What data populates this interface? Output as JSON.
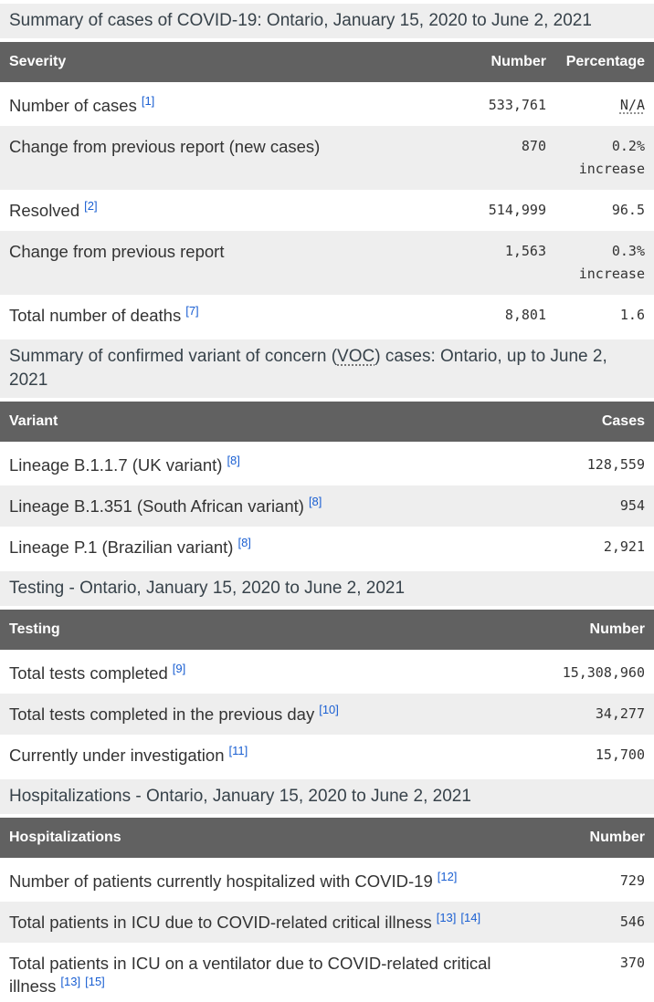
{
  "colors": {
    "table_header_bg": "#616161",
    "table_header_text": "#ffffff",
    "caption_bg": "#eeeeee",
    "caption_text": "#37424a",
    "row_stripe_bg": "#eeeeee",
    "body_text": "#333333",
    "footnote_link": "#1a5fd2"
  },
  "tables": [
    {
      "id": "severity",
      "caption": {
        "pre": "Summary of cases of COVID-19: Ontario, January 15, 2020 to June 2, 2021",
        "abbr": "",
        "post": ""
      },
      "columns": [
        {
          "label": "Severity",
          "align": "left"
        },
        {
          "label": "Number",
          "align": "right"
        },
        {
          "label": "Percentage",
          "align": "right"
        }
      ],
      "rows": [
        {
          "label": "Number of cases",
          "footnotes": [
            "[1]"
          ],
          "number": "533,761",
          "pct": "N/A",
          "pct_abbr": true,
          "pct_note": ""
        },
        {
          "label": "Change from previous report (new cases)",
          "footnotes": [],
          "number": "870",
          "pct": "0.2%",
          "pct_abbr": false,
          "pct_note": "increase"
        },
        {
          "label": "Resolved",
          "footnotes": [
            "[2]"
          ],
          "number": "514,999",
          "pct": "96.5",
          "pct_abbr": false,
          "pct_note": ""
        },
        {
          "label": "Change from previous report",
          "footnotes": [],
          "number": "1,563",
          "pct": "0.3%",
          "pct_abbr": false,
          "pct_note": "increase"
        },
        {
          "label": "Total number of deaths",
          "footnotes": [
            "[7]"
          ],
          "number": "8,801",
          "pct": "1.6",
          "pct_abbr": false,
          "pct_note": ""
        }
      ]
    },
    {
      "id": "variants",
      "caption": {
        "pre": "Summary of confirmed variant of concern (",
        "abbr": "VOC",
        "post": ") cases: Ontario, up to June 2, 2021"
      },
      "columns": [
        {
          "label": "Variant",
          "align": "left"
        },
        {
          "label": "Cases",
          "align": "right"
        }
      ],
      "rows": [
        {
          "label": "Lineage B.1.1.7 (UK variant)",
          "footnotes": [
            "[8]"
          ],
          "number": "128,559"
        },
        {
          "label": "Lineage B.1.351 (South African variant)",
          "footnotes": [
            "[8]"
          ],
          "number": "954"
        },
        {
          "label": "Lineage P.1 (Brazilian variant)",
          "footnotes": [
            "[8]"
          ],
          "number": "2,921"
        }
      ]
    },
    {
      "id": "testing",
      "caption": {
        "pre": "Testing - Ontario, January 15, 2020 to June 2, 2021",
        "abbr": "",
        "post": ""
      },
      "columns": [
        {
          "label": "Testing",
          "align": "left"
        },
        {
          "label": "Number",
          "align": "right"
        }
      ],
      "rows": [
        {
          "label": "Total tests completed",
          "footnotes": [
            "[9]"
          ],
          "number": "15,308,960"
        },
        {
          "label": "Total tests completed in the previous day",
          "footnotes": [
            "[10]"
          ],
          "number": "34,277"
        },
        {
          "label": "Currently under investigation",
          "footnotes": [
            "[11]"
          ],
          "number": "15,700"
        }
      ]
    },
    {
      "id": "hospitalizations",
      "caption": {
        "pre": "Hospitalizations - Ontario, January 15, 2020 to June 2, 2021",
        "abbr": "",
        "post": ""
      },
      "columns": [
        {
          "label": "Hospitalizations",
          "align": "left"
        },
        {
          "label": "Number",
          "align": "right"
        }
      ],
      "rows": [
        {
          "label": "Number of patients currently hospitalized with COVID-19",
          "footnotes": [
            "[12]"
          ],
          "number": "729"
        },
        {
          "label": "Total patients in ICU due to COVID-related critical illness",
          "footnotes": [
            "[13]",
            "[14]"
          ],
          "number": "546"
        },
        {
          "label": "Total patients in ICU on a ventilator due to COVID-related critical illness",
          "footnotes": [
            "[13]",
            "[15]"
          ],
          "number": "370"
        }
      ]
    }
  ]
}
